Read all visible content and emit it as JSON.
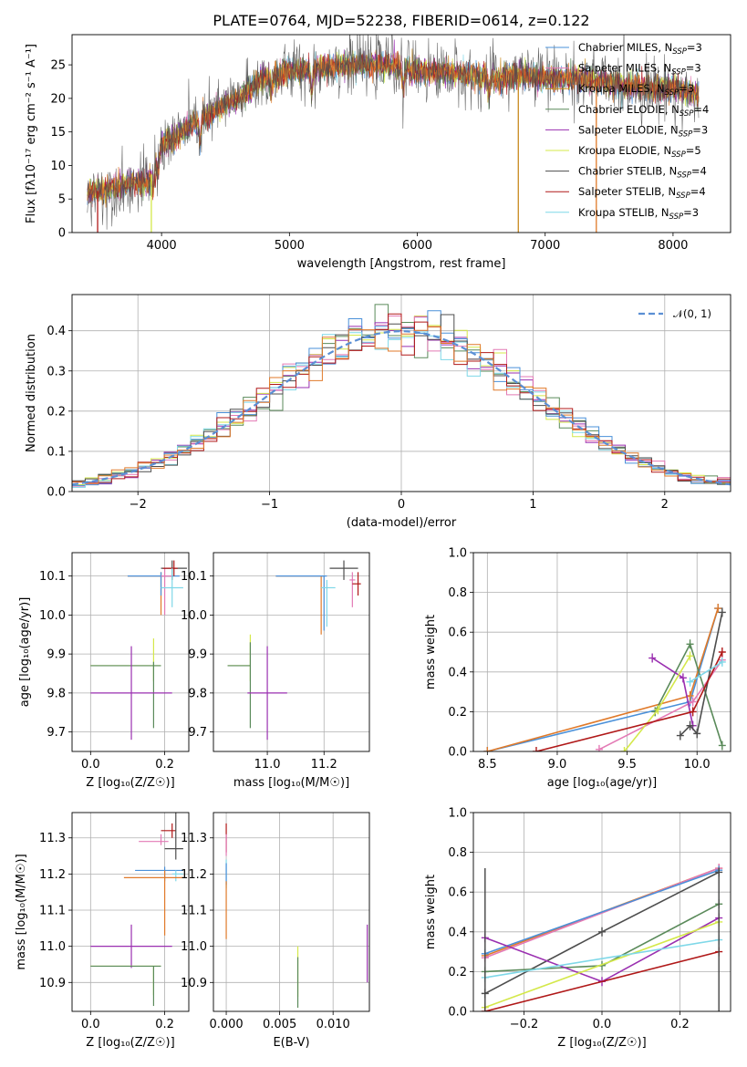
{
  "figure_title": "PLATE=0764, MJD=52238, FIBERID=0614, z=0.122",
  "colors": {
    "Chabrier MILES": "#4a90d9",
    "Salpeter MILES": "#e37ab5",
    "Kroupa MILES": "#c88a1e",
    "Chabrier ELODIE": "#5a8a5a",
    "Salpeter ELODIE": "#9a2fb0",
    "Kroupa ELODIE": "#d4e84a",
    "Chabrier STELIB": "#4d4d4d",
    "Salpeter STELIB": "#b01818",
    "Kroupa STELIB": "#7fd8e8",
    "Orange": "#e07a2a"
  },
  "chart_data": [
    {
      "id": "spectrum",
      "type": "line",
      "title": "PLATE=0764, MJD=52238, FIBERID=0614, z=0.122",
      "xlabel": "wavelength [Angstrom, rest frame]",
      "ylabel": "Flux [fλ10⁻¹⁷ erg cm⁻² s⁻¹ A⁻¹]",
      "xlim": [
        3300,
        8450
      ],
      "ylim": [
        0,
        29.5
      ],
      "xticks": [
        "4000",
        "5000",
        "6000",
        "7000",
        "8000"
      ],
      "yticks": [
        "0",
        "5",
        "10",
        "15",
        "20",
        "25"
      ],
      "legend_position": "right",
      "legend": [
        {
          "name": "Chabrier MILES",
          "sub": "SSP",
          "n": "=3"
        },
        {
          "name": "Salpeter MILES",
          "sub": "SSP",
          "n": "=3"
        },
        {
          "name": "Kroupa MILES",
          "sub": "SSP",
          "n": "=3"
        },
        {
          "name": "Chabrier ELODIE",
          "sub": "SSP",
          "n": "=4"
        },
        {
          "name": "Salpeter ELODIE",
          "sub": "SSP",
          "n": "=3"
        },
        {
          "name": "Kroupa ELODIE",
          "sub": "SSP",
          "n": "=5"
        },
        {
          "name": "Chabrier STELIB",
          "sub": "SSP",
          "n": "=4"
        },
        {
          "name": "Salpeter STELIB",
          "sub": "SSP",
          "n": "=4"
        },
        {
          "name": "Kroupa STELIB",
          "sub": "SSP",
          "n": "=3"
        }
      ],
      "continuum": [
        [
          3420,
          6.0
        ],
        [
          3600,
          6.5
        ],
        [
          3800,
          7.5
        ],
        [
          3900,
          7.5
        ],
        [
          4000,
          13.0
        ],
        [
          4200,
          15.5
        ],
        [
          4400,
          18.0
        ],
        [
          4600,
          20.0
        ],
        [
          4800,
          23.0
        ],
        [
          5000,
          24.0
        ],
        [
          5200,
          24.5
        ],
        [
          5400,
          25.0
        ],
        [
          5600,
          25.0
        ],
        [
          5800,
          25.0
        ],
        [
          6000,
          24.0
        ],
        [
          6200,
          24.0
        ],
        [
          6400,
          23.5
        ],
        [
          6600,
          23.0
        ],
        [
          6800,
          23.5
        ],
        [
          7000,
          23.0
        ],
        [
          7200,
          23.0
        ],
        [
          7400,
          22.5
        ],
        [
          7600,
          22.0
        ],
        [
          7800,
          21.5
        ],
        [
          8000,
          21.5
        ],
        [
          8200,
          20.5
        ]
      ],
      "dips": [
        [
          3935,
          3.0
        ],
        [
          3970,
          2.5
        ],
        [
          4300,
          3.0
        ],
        [
          4861,
          2.0
        ],
        [
          5175,
          3.5
        ],
        [
          5890,
          3.0
        ],
        [
          6563,
          2.5
        ]
      ],
      "drops": [
        [
          3500,
          "Salpeter STELIB"
        ],
        [
          3920,
          "Kroupa ELODIE"
        ],
        [
          6790,
          "Kroupa MILES"
        ],
        [
          7400,
          "Orange"
        ]
      ]
    },
    {
      "id": "residuals",
      "type": "bar",
      "xlabel": "(data-model)/error",
      "ylabel": "Normed distribution",
      "xlim": [
        -2.5,
        2.5
      ],
      "ylim": [
        0,
        0.49
      ],
      "xticks": [
        "−2",
        "−1",
        "0",
        "1",
        "2"
      ],
      "yticks": [
        "0.0",
        "0.1",
        "0.2",
        "0.3",
        "0.4"
      ],
      "bin_width": 0.1,
      "reference": {
        "label": "𝒩(0, 1)",
        "mean": 0,
        "sigma": 1
      }
    },
    {
      "id": "age_vs_Z",
      "type": "scatter",
      "xlabel": "Z [log₁₀(Z/Z☉)]",
      "ylabel": "age  [log₁₀(age/yr)]",
      "xlim": [
        -0.05,
        0.265
      ],
      "ylim": [
        9.65,
        10.16
      ],
      "xticks": [
        "0.0",
        "0.2"
      ],
      "yticks": [
        "9.7",
        "9.8",
        "9.9",
        "10.0",
        "10.1"
      ],
      "points": [
        {
          "s": "Orange",
          "x": 0.19,
          "xerr": [
            0.09,
            0.03
          ],
          "y": 10.1,
          "yerr": [
            0.1,
            0.01
          ]
        },
        {
          "s": "Chabrier MILES",
          "x": 0.19,
          "xerr": [
            0.09,
            0.05
          ],
          "y": 10.1,
          "yerr": [
            0.05,
            0.01
          ]
        },
        {
          "s": "Salpeter MILES",
          "x": 0.2,
          "xerr": [
            0.01,
            0.02
          ],
          "y": 10.1,
          "yerr": [
            0.1,
            0.02
          ]
        },
        {
          "s": "Chabrier STELIB",
          "x": 0.22,
          "xerr": [
            0.03,
            0.04
          ],
          "y": 10.12,
          "yerr": [
            0.03,
            0.02
          ]
        },
        {
          "s": "Salpeter STELIB",
          "x": 0.225,
          "xerr": [
            0.03,
            0.01
          ],
          "y": 10.12,
          "yerr": [
            0.02,
            0.02
          ]
        },
        {
          "s": "Kroupa STELIB",
          "x": 0.22,
          "xerr": [
            0.03,
            0.03
          ],
          "y": 10.07,
          "yerr": [
            0.05,
            0.05
          ]
        },
        {
          "s": "Kroupa ELODIE",
          "x": 0.17,
          "xerr": [
            0.17,
            0.02
          ],
          "y": 9.87,
          "yerr": [
            0.04,
            0.07
          ]
        },
        {
          "s": "Chabrier ELODIE",
          "x": 0.17,
          "xerr": [
            0.17,
            0.02
          ],
          "y": 9.87,
          "yerr": [
            0.16,
            0.01
          ]
        },
        {
          "s": "Salpeter ELODIE",
          "x": 0.11,
          "xerr": [
            0.11,
            0.11
          ],
          "y": 9.8,
          "yerr": [
            0.12,
            0.12
          ]
        }
      ]
    },
    {
      "id": "age_vs_mass",
      "type": "scatter",
      "xlabel": "mass [log₁₀(M/M☉)]",
      "ylabel": "",
      "xlim": [
        10.81,
        11.36
      ],
      "ylim": [
        9.65,
        10.16
      ],
      "xticks": [
        "11.0",
        "11.2"
      ],
      "yticks": [
        "9.7",
        "9.8",
        "9.9",
        "10.0",
        "10.1"
      ],
      "points": [
        {
          "s": "Orange",
          "x": 11.19,
          "xerr": [
            0.16,
            0.01
          ],
          "y": 10.1,
          "yerr": [
            0.15,
            0.0
          ]
        },
        {
          "s": "Chabrier MILES",
          "x": 11.2,
          "xerr": [
            0.17,
            0.01
          ],
          "y": 10.1,
          "yerr": [
            0.14,
            0.0
          ]
        },
        {
          "s": "Salpeter MILES",
          "x": 11.3,
          "xerr": [
            0.01,
            0.01
          ],
          "y": 10.09,
          "yerr": [
            0.07,
            0.02
          ]
        },
        {
          "s": "Chabrier STELIB",
          "x": 11.27,
          "xerr": [
            0.05,
            0.05
          ],
          "y": 10.12,
          "yerr": [
            0.03,
            0.02
          ]
        },
        {
          "s": "Salpeter STELIB",
          "x": 11.32,
          "xerr": [
            0.02,
            0.01
          ],
          "y": 10.08,
          "yerr": [
            0.03,
            0.03
          ]
        },
        {
          "s": "Kroupa STELIB",
          "x": 11.21,
          "xerr": [
            0.02,
            0.03
          ],
          "y": 10.07,
          "yerr": [
            0.1,
            0.02
          ]
        },
        {
          "s": "Kroupa ELODIE",
          "x": 10.94,
          "xerr": [
            0.08,
            0.0
          ],
          "y": 9.87,
          "yerr": [
            0.04,
            0.08
          ]
        },
        {
          "s": "Chabrier ELODIE",
          "x": 10.94,
          "xerr": [
            0.08,
            0.0
          ],
          "y": 9.87,
          "yerr": [
            0.16,
            0.06
          ]
        },
        {
          "s": "Salpeter ELODIE",
          "x": 11.0,
          "xerr": [
            0.07,
            0.07
          ],
          "y": 9.8,
          "yerr": [
            0.12,
            0.12
          ]
        }
      ]
    },
    {
      "id": "massweight_vs_age",
      "type": "line",
      "xlabel": "age  [log₁₀(age/yr)]",
      "ylabel": "mass weight",
      "xlim": [
        8.4,
        10.24
      ],
      "ylim": [
        0,
        1.0
      ],
      "xticks": [
        "8.5",
        "9.0",
        "9.5",
        "10.0"
      ],
      "yticks": [
        "0.0",
        "0.2",
        "0.4",
        "0.6",
        "0.8",
        "1.0"
      ],
      "series": [
        {
          "s": "Chabrier MILES",
          "x": [
            8.5,
            9.95,
            10.15
          ],
          "y": [
            0.0,
            0.25,
            0.72
          ]
        },
        {
          "s": "Salpeter MILES",
          "x": [
            9.3,
            9.97,
            10.18
          ],
          "y": [
            0.01,
            0.25,
            0.46
          ]
        },
        {
          "s": "Orange",
          "x": [
            8.5,
            9.95,
            10.15
          ],
          "y": [
            0.0,
            0.28,
            0.72
          ]
        },
        {
          "s": "Chabrier ELODIE",
          "x": [
            9.7,
            9.95,
            10.18
          ],
          "y": [
            0.2,
            0.54,
            0.03
          ]
        },
        {
          "s": "Salpeter ELODIE",
          "x": [
            9.68,
            9.9,
            9.97
          ],
          "y": [
            0.47,
            0.37,
            0.13
          ]
        },
        {
          "s": "Kroupa ELODIE",
          "x": [
            9.48,
            9.72,
            9.95
          ],
          "y": [
            0.0,
            0.21,
            0.48
          ]
        },
        {
          "s": "Chabrier STELIB",
          "x": [
            9.88,
            9.95,
            10.0,
            10.18
          ],
          "y": [
            0.08,
            0.13,
            0.09,
            0.7
          ]
        },
        {
          "s": "Salpeter STELIB",
          "x": [
            8.85,
            9.97,
            10.18
          ],
          "y": [
            0.0,
            0.2,
            0.5
          ]
        },
        {
          "s": "Kroupa STELIB",
          "x": [
            9.95,
            10.18
          ],
          "y": [
            0.35,
            0.45
          ]
        }
      ]
    },
    {
      "id": "mass_vs_Z",
      "type": "scatter",
      "xlabel": "Z [log₁₀(Z/Z☉)]",
      "ylabel": "mass [log₁₀(M/M☉)]",
      "xlim": [
        -0.05,
        0.265
      ],
      "ylim": [
        10.82,
        11.37
      ],
      "xticks": [
        "0.0",
        "0.2"
      ],
      "yticks": [
        "10.9",
        "11.0",
        "11.1",
        "11.2",
        "11.3"
      ],
      "points": [
        {
          "s": "Salpeter STELIB",
          "x": 0.22,
          "xerr": [
            0.03,
            0.01
          ],
          "y": 11.32,
          "yerr": [
            0.02,
            0.02
          ]
        },
        {
          "s": "Chabrier STELIB",
          "x": 0.23,
          "xerr": [
            0.03,
            0.02
          ],
          "y": 11.27,
          "yerr": [
            0.03,
            0.1
          ]
        },
        {
          "s": "Salpeter MILES",
          "x": 0.19,
          "xerr": [
            0.06,
            0.02
          ],
          "y": 11.29,
          "yerr": [
            0.01,
            0.02
          ]
        },
        {
          "s": "Chabrier MILES",
          "x": 0.2,
          "xerr": [
            0.08,
            0.05
          ],
          "y": 11.21,
          "yerr": [
            0.03,
            0.01
          ]
        },
        {
          "s": "Kroupa STELIB",
          "x": 0.23,
          "xerr": [
            0.01,
            0.02
          ],
          "y": 11.2,
          "yerr": [
            0.02,
            0.01
          ]
        },
        {
          "s": "Orange",
          "x": 0.2,
          "xerr": [
            0.11,
            0.05
          ],
          "y": 11.19,
          "yerr": [
            0.16,
            0.02
          ]
        },
        {
          "s": "Salpeter ELODIE",
          "x": 0.11,
          "xerr": [
            0.11,
            0.11
          ],
          "y": 11.0,
          "yerr": [
            0.06,
            0.06
          ]
        },
        {
          "s": "Kroupa ELODIE",
          "x": 0.17,
          "xerr": [
            0.17,
            0.02
          ],
          "y": 10.945,
          "yerr": [
            0.08,
            0.0
          ]
        },
        {
          "s": "Chabrier ELODIE",
          "x": 0.17,
          "xerr": [
            0.17,
            0.02
          ],
          "y": 10.945,
          "yerr": [
            0.11,
            0.0
          ]
        }
      ]
    },
    {
      "id": "mass_vs_EBV",
      "type": "scatter",
      "xlabel": "E(B-V)",
      "ylabel": "",
      "xlim": [
        -0.0012,
        0.0134
      ],
      "ylim": [
        10.82,
        11.37
      ],
      "xticks": [
        "0.000",
        "0.005",
        "0.010"
      ],
      "yticks": [
        "10.9",
        "11.0",
        "11.1",
        "11.2",
        "11.3"
      ],
      "points": [
        {
          "s": "Salpeter STELIB",
          "x": 0.0,
          "y": 11.3,
          "yerr": [
            0.04,
            0.04
          ]
        },
        {
          "s": "Salpeter MILES",
          "x": 0.0,
          "y": 11.28,
          "yerr": [
            0.03,
            0.03
          ]
        },
        {
          "s": "Kroupa STELIB",
          "x": 0.0,
          "y": 11.2,
          "yerr": [
            0.04,
            0.04
          ]
        },
        {
          "s": "Chabrier MILES",
          "x": 0.0,
          "y": 11.2,
          "yerr": [
            0.03,
            0.03
          ]
        },
        {
          "s": "Orange",
          "x": 0.0,
          "y": 11.1,
          "yerr": [
            0.08,
            0.08
          ]
        },
        {
          "s": "Kroupa ELODIE",
          "x": 0.0067,
          "y": 10.93,
          "yerr": [
            0.07,
            0.07
          ]
        },
        {
          "s": "Chabrier ELODIE",
          "x": 0.0067,
          "y": 10.9,
          "yerr": [
            0.07,
            0.07
          ]
        },
        {
          "s": "Salpeter ELODIE",
          "x": 0.0132,
          "y": 10.98,
          "yerr": [
            0.08,
            0.08
          ]
        }
      ]
    },
    {
      "id": "massweight_vs_Z",
      "type": "line",
      "xlabel": "Z [log₁₀(Z/Z☉)]",
      "ylabel": "mass weight",
      "xlim": [
        -0.33,
        0.33
      ],
      "ylim": [
        0,
        1.0
      ],
      "xticks": [
        "−0.2",
        "0.0",
        "0.2"
      ],
      "yticks": [
        "0.0",
        "0.2",
        "0.4",
        "0.6",
        "0.8",
        "1.0"
      ],
      "series": [
        {
          "s": "Orange",
          "x": [
            -0.3,
            0.3
          ],
          "y": [
            0.28,
            0.72
          ]
        },
        {
          "s": "Salpeter MILES",
          "x": [
            -0.3,
            0.3
          ],
          "y": [
            0.27,
            0.72
          ]
        },
        {
          "s": "Chabrier MILES",
          "x": [
            -0.3,
            0.3
          ],
          "y": [
            0.29,
            0.71
          ]
        },
        {
          "s": "Chabrier STELIB",
          "x": [
            -0.3,
            0.0,
            0.3
          ],
          "y": [
            0.09,
            0.4,
            0.7
          ]
        },
        {
          "s": "Chabrier ELODIE",
          "x": [
            -0.3,
            0.0,
            0.3
          ],
          "y": [
            0.2,
            0.23,
            0.54
          ]
        },
        {
          "s": "Salpeter ELODIE",
          "x": [
            -0.3,
            0.0,
            0.3
          ],
          "y": [
            0.37,
            0.15,
            0.47
          ]
        },
        {
          "s": "Kroupa ELODIE",
          "x": [
            -0.3,
            0.3
          ],
          "y": [
            0.02,
            0.45
          ]
        },
        {
          "s": "Kroupa STELIB",
          "x": [
            -0.3,
            0.3
          ],
          "y": [
            0.17,
            0.36
          ]
        },
        {
          "s": "Salpeter STELIB",
          "x": [
            -0.3,
            0.3
          ],
          "y": [
            0.0,
            0.3
          ]
        }
      ],
      "vertical_markers_at": [
        -0.3,
        0.3
      ]
    }
  ]
}
